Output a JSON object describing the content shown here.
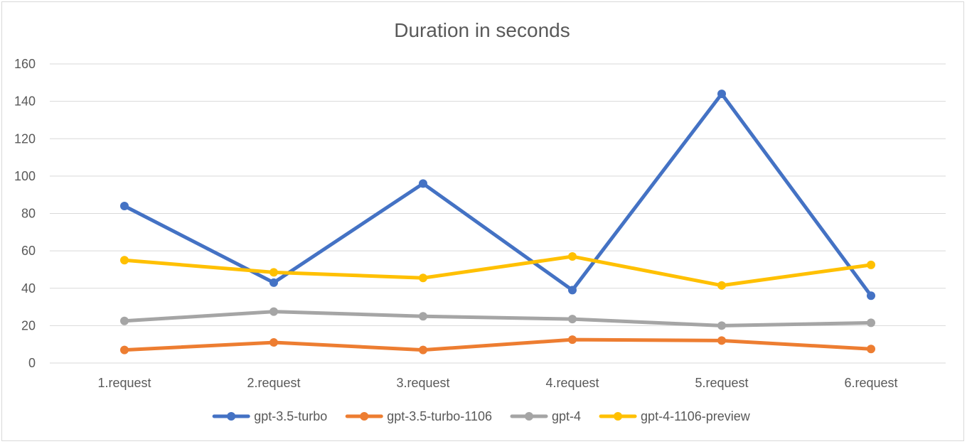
{
  "chart_data": {
    "type": "line",
    "title": "Duration in seconds",
    "xlabel": "",
    "ylabel": "",
    "categories": [
      "1.request",
      "2.request",
      "3.request",
      "4.request",
      "5.request",
      "6.request"
    ],
    "ylim": [
      0,
      160
    ],
    "yticks": [
      "0",
      "20",
      "40",
      "60",
      "80",
      "100",
      "120",
      "140",
      "160"
    ],
    "grid": "horizontal",
    "legend": "bottom",
    "series": [
      {
        "name": "gpt-3.5-turbo",
        "color": "#4472c4",
        "values": [
          84,
          43,
          96,
          39,
          144,
          36
        ]
      },
      {
        "name": "gpt-3.5-turbo-1106",
        "color": "#ed7d31",
        "values": [
          7,
          11,
          7,
          12.5,
          12,
          7.5
        ]
      },
      {
        "name": "gpt-4",
        "color": "#a5a5a5",
        "values": [
          22.5,
          27.5,
          25,
          23.5,
          20,
          21.5
        ]
      },
      {
        "name": "gpt-4-1106-preview",
        "color": "#ffc000",
        "values": [
          55,
          48.5,
          45.5,
          57,
          41.5,
          52.5
        ]
      }
    ]
  }
}
